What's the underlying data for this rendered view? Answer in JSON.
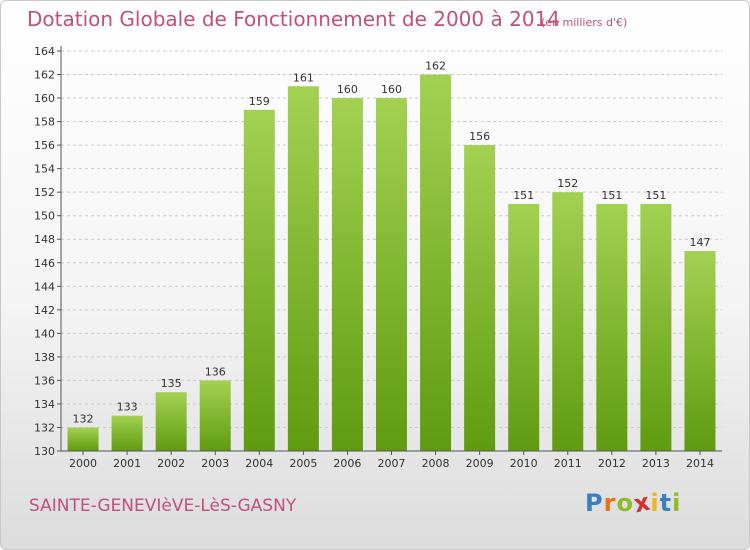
{
  "header": {
    "title": "Dotation Globale de Fonctionnement de 2000 à 2014",
    "unit": "(en milliers d'€)"
  },
  "footer": {
    "commune": "SAINTE-GENEVIèVE-LèS-GASNY",
    "logo_letters": [
      {
        "char": "P",
        "color": "#3a7fc1"
      },
      {
        "char": "r",
        "color": "#e9731a"
      },
      {
        "char": "o",
        "color": "#8cbf26"
      },
      {
        "char": "x",
        "color": "#d62e2e"
      },
      {
        "char": "i",
        "color": "#f2b51c"
      },
      {
        "char": "t",
        "color": "#3a7fc1"
      },
      {
        "char": "i",
        "color": "#8cbf26"
      }
    ]
  },
  "colors": {
    "bar_top": "#a3d152",
    "bar_bottom": "#5f9b10",
    "text_accent": "#c0507c"
  },
  "chart_data": {
    "type": "bar",
    "categories": [
      "2000",
      "2001",
      "2002",
      "2003",
      "2004",
      "2005",
      "2006",
      "2007",
      "2008",
      "2009",
      "2010",
      "2011",
      "2012",
      "2013",
      "2014"
    ],
    "values": [
      132,
      133,
      135,
      136,
      159,
      161,
      160,
      160,
      162,
      156,
      151,
      152,
      151,
      151,
      147
    ],
    "title": "Dotation Globale de Fonctionnement de 2000 à 2014",
    "ylim": [
      130,
      164
    ],
    "yticks": [
      130,
      132,
      134,
      136,
      138,
      140,
      142,
      144,
      146,
      148,
      150,
      152,
      154,
      156,
      158,
      160,
      162,
      164
    ],
    "grid": true
  }
}
